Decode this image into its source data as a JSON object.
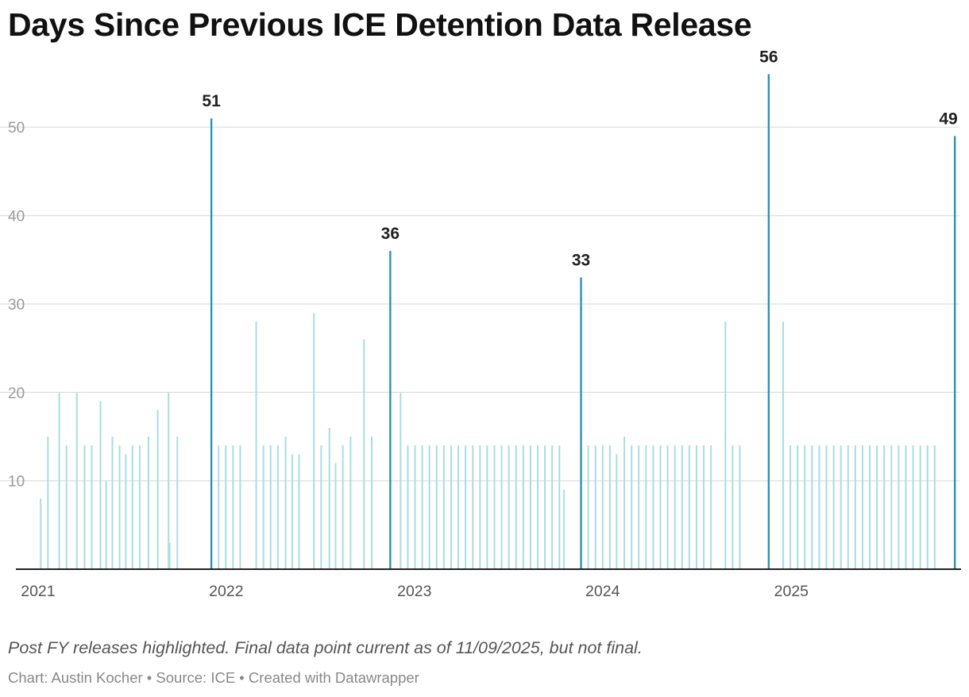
{
  "title": "Days Since Previous ICE Detention Data Release",
  "note": "Post FY releases highlighted. Final data point current as of 11/09/2025, but not final.",
  "credit": "Chart: Austin Kocher • Source: ICE • Created with Datawrapper",
  "colors": {
    "highlight": "#2b93b3",
    "regular": "#a8dde4",
    "grid": "#e0e0e0",
    "axis": "#222222"
  },
  "chart_data": {
    "type": "bar",
    "title": "Days Since Previous ICE Detention Data Release",
    "xlabel": "",
    "ylabel": "",
    "ylim": [
      0,
      59
    ],
    "xlim": [
      "2020-12-27",
      "2025-11-18"
    ],
    "yticks": [
      10,
      20,
      30,
      40,
      50
    ],
    "xticks": [
      {
        "label": "2021",
        "date": "2021-01-01"
      },
      {
        "label": "2022",
        "date": "2022-01-01"
      },
      {
        "label": "2023",
        "date": "2023-01-01"
      },
      {
        "label": "2024",
        "date": "2024-01-01"
      },
      {
        "label": "2025",
        "date": "2025-01-01"
      }
    ],
    "grid": true,
    "series": [
      {
        "values": [
          {
            "date": "2021-01-01",
            "value": 8
          },
          {
            "date": "2021-01-15",
            "value": 15
          },
          {
            "date": "2021-02-06",
            "value": 20
          },
          {
            "date": "2021-02-20",
            "value": 14
          },
          {
            "date": "2021-03-12",
            "value": 20
          },
          {
            "date": "2021-03-27",
            "value": 14
          },
          {
            "date": "2021-04-10",
            "value": 14
          },
          {
            "date": "2021-04-27",
            "value": 19
          },
          {
            "date": "2021-05-08",
            "value": 10
          },
          {
            "date": "2021-05-20",
            "value": 15
          },
          {
            "date": "2021-06-03",
            "value": 14
          },
          {
            "date": "2021-06-15",
            "value": 13
          },
          {
            "date": "2021-06-28",
            "value": 14
          },
          {
            "date": "2021-07-12",
            "value": 14
          },
          {
            "date": "2021-07-29",
            "value": 15
          },
          {
            "date": "2021-08-16",
            "value": 18
          },
          {
            "date": "2021-09-06",
            "value": 20
          },
          {
            "date": "2021-09-08",
            "value": 3
          },
          {
            "date": "2021-09-23",
            "value": 15
          },
          {
            "date": "2021-11-28",
            "value": 51,
            "highlight": true
          },
          {
            "date": "2021-12-12",
            "value": 14
          },
          {
            "date": "2021-12-26",
            "value": 14
          },
          {
            "date": "2022-01-09",
            "value": 14
          },
          {
            "date": "2022-01-23",
            "value": 14
          },
          {
            "date": "2022-02-23",
            "value": 28
          },
          {
            "date": "2022-03-09",
            "value": 14
          },
          {
            "date": "2022-03-23",
            "value": 14
          },
          {
            "date": "2022-04-06",
            "value": 14
          },
          {
            "date": "2022-04-21",
            "value": 15
          },
          {
            "date": "2022-05-04",
            "value": 13
          },
          {
            "date": "2022-05-17",
            "value": 13
          },
          {
            "date": "2022-06-15",
            "value": 29
          },
          {
            "date": "2022-06-29",
            "value": 14
          },
          {
            "date": "2022-07-15",
            "value": 16
          },
          {
            "date": "2022-07-27",
            "value": 12
          },
          {
            "date": "2022-08-10",
            "value": 14
          },
          {
            "date": "2022-08-25",
            "value": 15
          },
          {
            "date": "2022-09-20",
            "value": 26
          },
          {
            "date": "2022-10-05",
            "value": 15
          },
          {
            "date": "2022-11-10",
            "value": 36,
            "highlight": true
          },
          {
            "date": "2022-11-30",
            "value": 20
          },
          {
            "date": "2022-12-14",
            "value": 14
          },
          {
            "date": "2022-12-28",
            "value": 14
          },
          {
            "date": "2023-01-11",
            "value": 14
          },
          {
            "date": "2023-01-25",
            "value": 14
          },
          {
            "date": "2023-02-08",
            "value": 14
          },
          {
            "date": "2023-02-22",
            "value": 14
          },
          {
            "date": "2023-03-08",
            "value": 14
          },
          {
            "date": "2023-03-22",
            "value": 14
          },
          {
            "date": "2023-04-05",
            "value": 14
          },
          {
            "date": "2023-04-19",
            "value": 14
          },
          {
            "date": "2023-05-03",
            "value": 14
          },
          {
            "date": "2023-05-17",
            "value": 14
          },
          {
            "date": "2023-05-31",
            "value": 14
          },
          {
            "date": "2023-06-14",
            "value": 14
          },
          {
            "date": "2023-06-28",
            "value": 14
          },
          {
            "date": "2023-07-12",
            "value": 14
          },
          {
            "date": "2023-07-26",
            "value": 14
          },
          {
            "date": "2023-08-09",
            "value": 14
          },
          {
            "date": "2023-08-23",
            "value": 14
          },
          {
            "date": "2023-09-06",
            "value": 14
          },
          {
            "date": "2023-09-20",
            "value": 14
          },
          {
            "date": "2023-10-04",
            "value": 14
          },
          {
            "date": "2023-10-13",
            "value": 9
          },
          {
            "date": "2023-11-15",
            "value": 33,
            "highlight": true
          },
          {
            "date": "2023-11-29",
            "value": 14
          },
          {
            "date": "2023-12-13",
            "value": 14
          },
          {
            "date": "2023-12-27",
            "value": 14
          },
          {
            "date": "2024-01-10",
            "value": 14
          },
          {
            "date": "2024-01-23",
            "value": 13
          },
          {
            "date": "2024-02-07",
            "value": 15
          },
          {
            "date": "2024-02-21",
            "value": 14
          },
          {
            "date": "2024-03-06",
            "value": 14
          },
          {
            "date": "2024-03-20",
            "value": 14
          },
          {
            "date": "2024-04-03",
            "value": 14
          },
          {
            "date": "2024-04-17",
            "value": 14
          },
          {
            "date": "2024-05-01",
            "value": 14
          },
          {
            "date": "2024-05-15",
            "value": 14
          },
          {
            "date": "2024-05-29",
            "value": 14
          },
          {
            "date": "2024-06-12",
            "value": 14
          },
          {
            "date": "2024-06-26",
            "value": 14
          },
          {
            "date": "2024-07-10",
            "value": 14
          },
          {
            "date": "2024-07-24",
            "value": 14
          },
          {
            "date": "2024-08-21",
            "value": 28
          },
          {
            "date": "2024-09-04",
            "value": 14
          },
          {
            "date": "2024-09-18",
            "value": 14
          },
          {
            "date": "2024-11-13",
            "value": 56,
            "highlight": true
          },
          {
            "date": "2024-12-11",
            "value": 28
          },
          {
            "date": "2024-12-25",
            "value": 14
          },
          {
            "date": "2025-01-08",
            "value": 14
          },
          {
            "date": "2025-01-22",
            "value": 14
          },
          {
            "date": "2025-02-05",
            "value": 14
          },
          {
            "date": "2025-02-19",
            "value": 14
          },
          {
            "date": "2025-03-05",
            "value": 14
          },
          {
            "date": "2025-03-19",
            "value": 14
          },
          {
            "date": "2025-04-02",
            "value": 14
          },
          {
            "date": "2025-04-16",
            "value": 14
          },
          {
            "date": "2025-04-30",
            "value": 14
          },
          {
            "date": "2025-05-14",
            "value": 14
          },
          {
            "date": "2025-05-28",
            "value": 14
          },
          {
            "date": "2025-06-11",
            "value": 14
          },
          {
            "date": "2025-06-25",
            "value": 14
          },
          {
            "date": "2025-07-09",
            "value": 14
          },
          {
            "date": "2025-07-23",
            "value": 14
          },
          {
            "date": "2025-08-06",
            "value": 14
          },
          {
            "date": "2025-08-20",
            "value": 14
          },
          {
            "date": "2025-09-03",
            "value": 14
          },
          {
            "date": "2025-09-17",
            "value": 14
          },
          {
            "date": "2025-10-01",
            "value": 14
          },
          {
            "date": "2025-11-09",
            "value": 49,
            "highlight": true
          }
        ]
      }
    ],
    "annotations": [
      "51",
      "36",
      "33",
      "56",
      "49"
    ]
  }
}
